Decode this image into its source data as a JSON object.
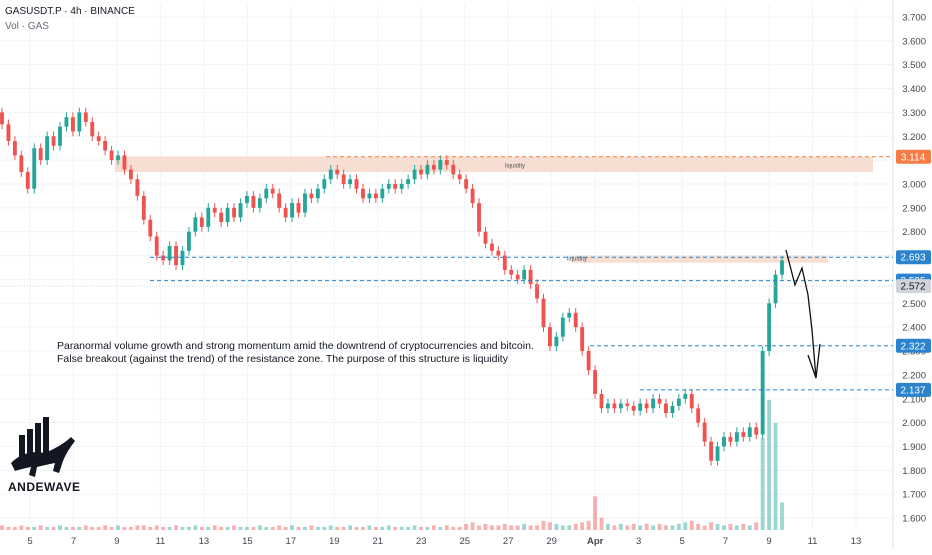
{
  "header": {
    "symbol_line": "GASUSDT.P · 4h · BINANCE",
    "volume_line": "Vol · GAS"
  },
  "annotation": {
    "line1": "Paranormal volume growth and strong momentum amid the downtrend of cryptocurrencies and bitcoin.",
    "line2": "False breakout (against the trend) of the resistance zone. The purpose of this structure is liquidity"
  },
  "brand": {
    "name": "ANDEWAVE"
  },
  "colors": {
    "up": "#26a69a",
    "down": "#ef5350",
    "zone": "#f7ded2",
    "level_orange": "#f57c44",
    "level_blue": "#2a83cc",
    "grid": "#f0f3fa",
    "axis_text": "#434651"
  },
  "chart_data": {
    "type": "candlestick",
    "y_axis_ticks": [
      "3.700",
      "3.600",
      "3.500",
      "3.400",
      "3.300",
      "3.200",
      "3.100",
      "3.000",
      "2.900",
      "2.800",
      "2.700",
      "2.600",
      "2.500",
      "2.400",
      "2.300",
      "2.200",
      "2.100",
      "2.000",
      "1.900",
      "1.800",
      "1.700",
      "1.600"
    ],
    "x_axis_ticks": [
      "5",
      "7",
      "9",
      "11",
      "13",
      "15",
      "17",
      "19",
      "21",
      "23",
      "25",
      "27",
      "29",
      "Apr",
      "3",
      "5",
      "7",
      "9",
      "11",
      "13"
    ],
    "ylim": [
      1.55,
      3.75
    ],
    "price_labels": [
      {
        "value": 3.114,
        "text": "3.114",
        "style": "orange"
      },
      {
        "value": 2.693,
        "text": "2.693",
        "style": "blue"
      },
      {
        "value": 2.595,
        "text": "2.595",
        "style": "blue"
      },
      {
        "value": 2.572,
        "text": "2.572",
        "style": "gray"
      },
      {
        "value": 2.322,
        "text": "2.322",
        "style": "blue"
      },
      {
        "value": 2.137,
        "text": "2.137",
        "style": "blue"
      }
    ],
    "zones": [
      {
        "label": "",
        "top": 3.115,
        "bottom": 3.05,
        "from": "9",
        "to": "13+"
      },
      {
        "label": "",
        "top": 2.7,
        "bottom": 2.67,
        "from": "29",
        "to": "11+"
      }
    ],
    "zone_labels": [
      "liquidity",
      "liquidity"
    ],
    "closes": [
      3.25,
      3.18,
      3.12,
      3.05,
      2.98,
      3.15,
      3.1,
      3.2,
      3.16,
      3.24,
      3.28,
      3.22,
      3.3,
      3.26,
      3.2,
      3.18,
      3.14,
      3.1,
      3.12,
      3.06,
      3.02,
      2.95,
      2.85,
      2.78,
      2.7,
      2.68,
      2.74,
      2.66,
      2.72,
      2.8,
      2.86,
      2.82,
      2.9,
      2.88,
      2.84,
      2.9,
      2.86,
      2.92,
      2.95,
      2.9,
      2.94,
      2.98,
      2.96,
      2.9,
      2.86,
      2.92,
      2.88,
      2.96,
      2.94,
      2.98,
      3.02,
      3.06,
      3.04,
      3.0,
      3.02,
      2.98,
      2.94,
      2.96,
      2.94,
      2.98,
      3.0,
      2.98,
      3.0,
      3.02,
      3.06,
      3.04,
      3.08,
      3.06,
      3.1,
      3.08,
      3.04,
      3.02,
      2.98,
      2.92,
      2.8,
      2.75,
      2.72,
      2.7,
      2.64,
      2.62,
      2.6,
      2.64,
      2.58,
      2.52,
      2.4,
      2.32,
      2.36,
      2.44,
      2.46,
      2.4,
      2.3,
      2.22,
      2.12,
      2.06,
      2.08,
      2.06,
      2.08,
      2.07,
      2.05,
      2.08,
      2.06,
      2.1,
      2.08,
      2.04,
      2.07,
      2.1,
      2.12,
      2.06,
      2.0,
      1.92,
      1.84,
      1.9,
      1.94,
      1.92,
      1.96,
      1.94,
      1.98,
      1.95,
      2.3,
      2.5,
      2.62,
      2.68
    ],
    "volumes": [
      3,
      2,
      2,
      3,
      2,
      2,
      3,
      2,
      2,
      3,
      2,
      2,
      2,
      3,
      2,
      2,
      3,
      2,
      3,
      2,
      2,
      3,
      3,
      2,
      3,
      2,
      2,
      3,
      2,
      2,
      3,
      2,
      2,
      3,
      2,
      2,
      3,
      2,
      2,
      2,
      3,
      2,
      2,
      3,
      2,
      3,
      2,
      2,
      3,
      2,
      2,
      3,
      2,
      2,
      3,
      2,
      2,
      3,
      2,
      2,
      3,
      2,
      2,
      2,
      3,
      2,
      2,
      3,
      2,
      3,
      2,
      2,
      4,
      5,
      3,
      4,
      3,
      3,
      4,
      3,
      3,
      4,
      3,
      3,
      6,
      5,
      4,
      3,
      3,
      4,
      5,
      6,
      22,
      8,
      4,
      3,
      4,
      3,
      4,
      3,
      4,
      3,
      4,
      3,
      3,
      4,
      5,
      6,
      4,
      3,
      5,
      4,
      3,
      4,
      3,
      4,
      3,
      5,
      60,
      85,
      70,
      18
    ]
  }
}
